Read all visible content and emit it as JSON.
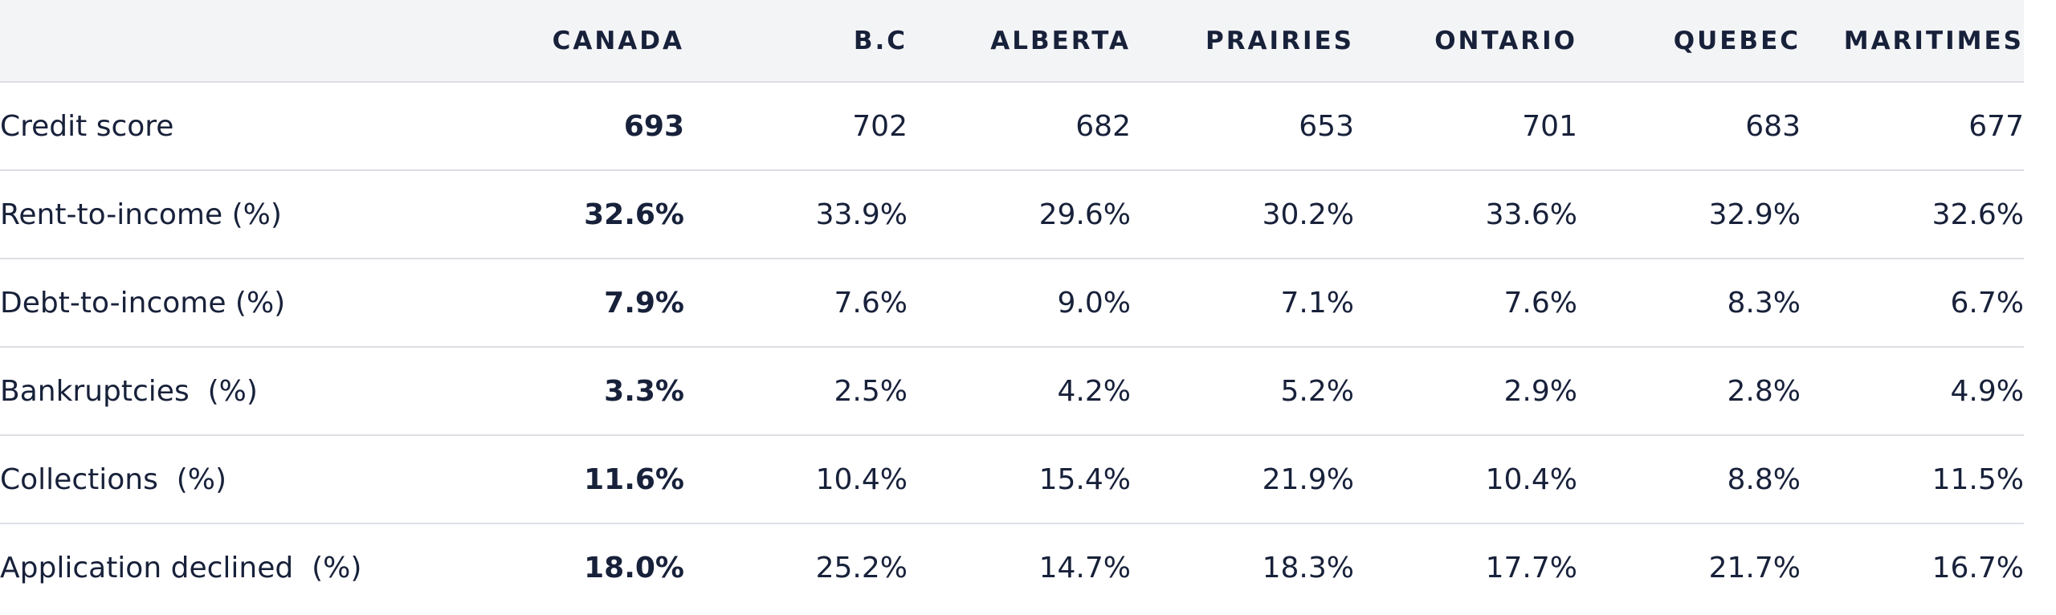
{
  "table": {
    "columns": [
      "CANADA",
      "B.C",
      "ALBERTA",
      "PRAIRIES",
      "ONTARIO",
      "QUEBEC",
      "MARITIMES"
    ],
    "rows": [
      [
        "Credit score",
        "693",
        "702",
        "682",
        "653",
        "701",
        "683",
        "677"
      ],
      [
        "Rent-to-income (%)",
        "32.6%",
        "33.9%",
        "29.6%",
        "30.2%",
        "33.6%",
        "32.9%",
        "32.6%"
      ],
      [
        "Debt-to-income (%)",
        "7.9%",
        "7.6%",
        "9.0%",
        "7.1%",
        "7.6%",
        "8.3%",
        "6.7%"
      ],
      [
        "Bankruptcies  (%)",
        "3.3%",
        "2.5%",
        "4.2%",
        "5.2%",
        "2.9%",
        "2.8%",
        "4.9%"
      ],
      [
        "Collections  (%)",
        "11.6%",
        "10.4%",
        "15.4%",
        "21.9%",
        "10.4%",
        "8.8%",
        "11.5%"
      ],
      [
        "Application declined  (%)",
        "18.0%",
        "25.2%",
        "14.7%",
        "18.3%",
        "17.7%",
        "21.7%",
        "16.7%"
      ]
    ]
  }
}
